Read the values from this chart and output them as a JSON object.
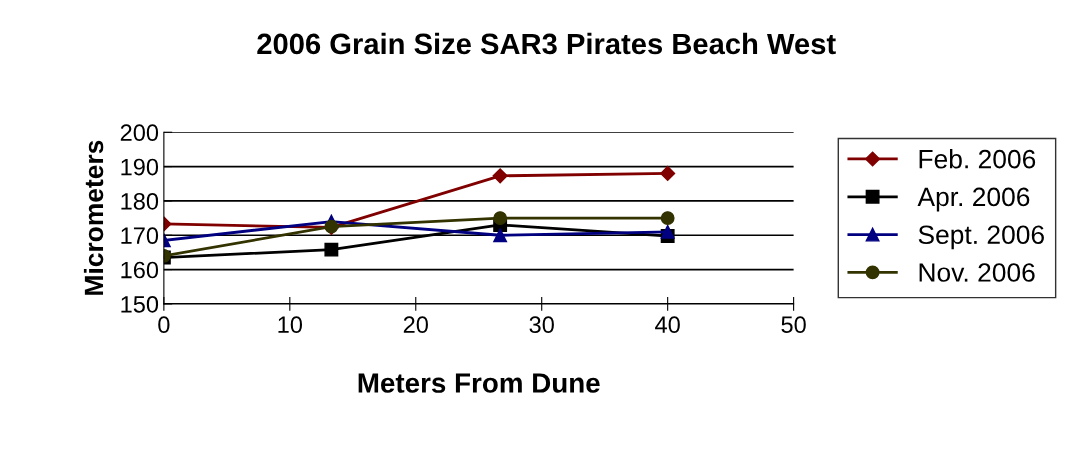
{
  "chart_data": {
    "type": "line",
    "title": "2006 Grain Size SAR3 Pirates Beach West",
    "xlabel": "Meters From Dune",
    "ylabel": "Micrometers",
    "x": [
      0,
      13.3,
      26.7,
      40
    ],
    "series": [
      {
        "name": "Feb. 2006",
        "color": "#800000",
        "marker": "diamond",
        "values": [
          173.3,
          172.3,
          187.3,
          188
        ]
      },
      {
        "name": "Apr. 2006",
        "color": "#000000",
        "marker": "square",
        "values": [
          163.5,
          165.8,
          173,
          169.8
        ]
      },
      {
        "name": "Sept. 2006",
        "color": "#000080",
        "marker": "triangle",
        "values": [
          168.5,
          174,
          170,
          171
        ]
      },
      {
        "name": "Nov. 2006",
        "color": "#333300",
        "marker": "circle",
        "values": [
          164,
          172.5,
          175,
          175
        ]
      }
    ],
    "xlim": [
      0,
      50
    ],
    "xticks": [
      0,
      10,
      20,
      30,
      40,
      50
    ],
    "ylim": [
      150,
      200
    ],
    "yticks": [
      150,
      160,
      170,
      180,
      190,
      200
    ],
    "grid": "y",
    "legend": "right"
  }
}
